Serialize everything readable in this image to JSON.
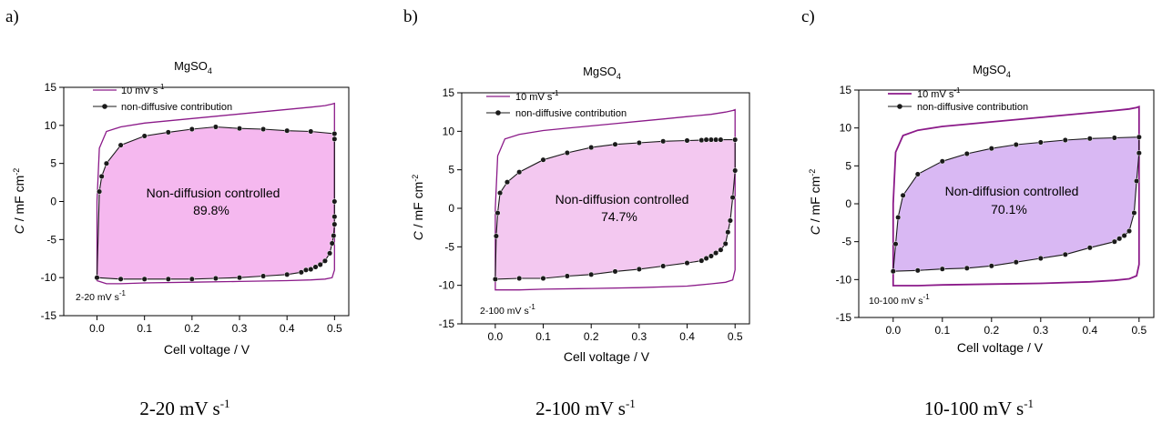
{
  "colors": {
    "cv_line": "#8b1a89",
    "fill_a": "#f5b8ef",
    "fill_b": "#f3c8f0",
    "fill_c": "#d9b8f3",
    "marker": "#1a1a1a"
  },
  "chart_data": [
    {
      "type": "line",
      "panel_label": "a)",
      "title_main": "MgSO",
      "title_sub": "4",
      "xlabel": "Cell voltage / V",
      "ylabel_italic": "C",
      "ylabel_rest": " / mF cm",
      "ylabel_sup": "-2",
      "xlim": [
        -0.07,
        0.53
      ],
      "ylim": [
        -15,
        15
      ],
      "xticks": [
        "0.0",
        "0.1",
        "0.2",
        "0.3",
        "0.4",
        "0.5"
      ],
      "yticks": [
        "-15",
        "-10",
        "-5",
        "0",
        "5",
        "10",
        "15"
      ],
      "legend": {
        "cv_label": "10 mV s",
        "cv_label_sup": "-1",
        "marker_label": "non-diffusive contribution"
      },
      "region_label": "Non-diffusion controlled",
      "region_value": "89.8%",
      "range_label": "2-20 mV s",
      "range_label_sup": "-1",
      "caption": "2-20 mV s",
      "caption_sup": "-1",
      "series": [
        {
          "name": "10 mV s-1",
          "x": [
            0.0,
            0.0,
            0.005,
            0.02,
            0.05,
            0.1,
            0.15,
            0.2,
            0.25,
            0.3,
            0.35,
            0.4,
            0.45,
            0.48,
            0.495,
            0.5,
            0.5,
            0.5,
            0.495,
            0.48,
            0.45,
            0.4,
            0.3,
            0.2,
            0.1,
            0.05,
            0.02,
            0.0
          ],
          "y": [
            -10.4,
            0.0,
            7.0,
            9.2,
            9.8,
            10.3,
            10.6,
            10.9,
            11.2,
            11.5,
            11.8,
            12.1,
            12.4,
            12.6,
            12.8,
            12.9,
            0.0,
            -9.0,
            -10.0,
            -10.2,
            -10.3,
            -10.4,
            -10.5,
            -10.6,
            -10.7,
            -10.8,
            -10.8,
            -10.4
          ]
        },
        {
          "name": "non-diffusive contribution",
          "x": [
            0.0,
            0.005,
            0.01,
            0.02,
            0.05,
            0.1,
            0.15,
            0.2,
            0.25,
            0.3,
            0.35,
            0.4,
            0.45,
            0.5,
            0.5,
            0.5,
            0.5,
            0.5,
            0.498,
            0.495,
            0.49,
            0.48,
            0.47,
            0.46,
            0.45,
            0.44,
            0.43,
            0.4,
            0.35,
            0.3,
            0.25,
            0.2,
            0.15,
            0.1,
            0.05,
            0.0
          ],
          "y": [
            -10.0,
            1.3,
            3.3,
            5.0,
            7.4,
            8.6,
            9.1,
            9.5,
            9.8,
            9.6,
            9.5,
            9.3,
            9.2,
            8.9,
            8.2,
            0.0,
            -2.0,
            -3.0,
            -4.5,
            -5.5,
            -6.8,
            -7.8,
            -8.3,
            -8.6,
            -8.9,
            -9.0,
            -9.3,
            -9.6,
            -9.8,
            -10.0,
            -10.1,
            -10.2,
            -10.2,
            -10.2,
            -10.2,
            -10.0
          ]
        }
      ]
    },
    {
      "type": "line",
      "panel_label": "b)",
      "title_main": "MgSO",
      "title_sub": "4",
      "xlabel": "Cell voltage / V",
      "ylabel_italic": "C",
      "ylabel_rest": " / mF cm",
      "ylabel_sup": "-2",
      "xlim": [
        -0.07,
        0.53
      ],
      "ylim": [
        -15,
        15
      ],
      "xticks": [
        "0.0",
        "0.1",
        "0.2",
        "0.3",
        "0.4",
        "0.5"
      ],
      "yticks": [
        "-15",
        "-10",
        "-5",
        "0",
        "5",
        "10",
        "15"
      ],
      "legend": {
        "cv_label": "10 mV s",
        "cv_label_sup": "-1",
        "marker_label": "non-diffusive contribution"
      },
      "region_label": "Non-diffusion controlled",
      "region_value": "74.7%",
      "range_label": "2-100 mV s",
      "range_label_sup": "-1",
      "caption": "2-100 mV s",
      "caption_sup": "-1",
      "series": [
        {
          "name": "10 mV s-1",
          "x": [
            0.0,
            0.0,
            0.005,
            0.02,
            0.05,
            0.1,
            0.15,
            0.2,
            0.25,
            0.3,
            0.35,
            0.4,
            0.45,
            0.48,
            0.495,
            0.5,
            0.5,
            0.5,
            0.495,
            0.48,
            0.45,
            0.4,
            0.3,
            0.2,
            0.1,
            0.05,
            0.02,
            0.0
          ],
          "y": [
            -10.6,
            0.0,
            6.8,
            9.0,
            9.6,
            10.1,
            10.4,
            10.7,
            11.0,
            11.3,
            11.6,
            11.9,
            12.2,
            12.5,
            12.7,
            12.8,
            0.0,
            -8.0,
            -9.3,
            -9.6,
            -9.8,
            -10.1,
            -10.3,
            -10.4,
            -10.5,
            -10.6,
            -10.6,
            -10.6
          ]
        },
        {
          "name": "non-diffusive contribution",
          "x": [
            0.0,
            0.002,
            0.005,
            0.01,
            0.025,
            0.05,
            0.1,
            0.15,
            0.2,
            0.25,
            0.3,
            0.35,
            0.4,
            0.43,
            0.44,
            0.45,
            0.46,
            0.47,
            0.5,
            0.5,
            0.495,
            0.49,
            0.485,
            0.48,
            0.47,
            0.46,
            0.45,
            0.44,
            0.43,
            0.4,
            0.35,
            0.3,
            0.25,
            0.2,
            0.15,
            0.1,
            0.05,
            0.0
          ],
          "y": [
            -9.2,
            -3.6,
            -0.6,
            2.0,
            3.4,
            4.7,
            6.3,
            7.2,
            7.9,
            8.3,
            8.5,
            8.7,
            8.8,
            8.85,
            8.9,
            8.9,
            8.9,
            8.9,
            8.9,
            4.9,
            1.4,
            -1.6,
            -3.1,
            -4.6,
            -5.4,
            -5.8,
            -6.2,
            -6.5,
            -6.8,
            -7.1,
            -7.5,
            -7.9,
            -8.2,
            -8.6,
            -8.8,
            -9.1,
            -9.1,
            -9.2
          ]
        }
      ]
    },
    {
      "type": "line",
      "panel_label": "c)",
      "title_main": "MgSO",
      "title_sub": "4",
      "xlabel": "Cell voltage / V",
      "ylabel_italic": "C",
      "ylabel_rest": " / mF cm",
      "ylabel_sup": "-2",
      "xlim": [
        -0.07,
        0.53
      ],
      "ylim": [
        -15,
        15
      ],
      "xticks": [
        "0.0",
        "0.1",
        "0.2",
        "0.3",
        "0.4",
        "0.5"
      ],
      "yticks": [
        "-15",
        "-10",
        "-5",
        "0",
        "5",
        "10",
        "15"
      ],
      "legend": {
        "cv_label": "10 mV s",
        "cv_label_sup": "-1",
        "marker_label": "non-diffusive contribution"
      },
      "region_label": "Non-diffusion controlled",
      "region_value": "70.1%",
      "range_label": "10-100 mV s",
      "range_label_sup": "-1",
      "caption": "10-100 mV s",
      "caption_sup": "-1",
      "series": [
        {
          "name": "10 mV s-1",
          "x": [
            0.0,
            0.0,
            0.005,
            0.02,
            0.05,
            0.1,
            0.15,
            0.2,
            0.25,
            0.3,
            0.35,
            0.4,
            0.45,
            0.48,
            0.495,
            0.5,
            0.5,
            0.5,
            0.495,
            0.48,
            0.45,
            0.4,
            0.3,
            0.2,
            0.1,
            0.05,
            0.02,
            0.0
          ],
          "y": [
            -10.8,
            0.0,
            6.8,
            9.0,
            9.7,
            10.2,
            10.5,
            10.8,
            11.1,
            11.4,
            11.7,
            12.0,
            12.3,
            12.5,
            12.7,
            12.8,
            0.0,
            -8.0,
            -9.5,
            -9.9,
            -10.1,
            -10.3,
            -10.5,
            -10.6,
            -10.7,
            -10.8,
            -10.8,
            -10.8
          ]
        },
        {
          "name": "non-diffusive contribution",
          "x": [
            0.0,
            0.005,
            0.01,
            0.02,
            0.05,
            0.1,
            0.15,
            0.2,
            0.25,
            0.3,
            0.35,
            0.4,
            0.45,
            0.5,
            0.5,
            0.495,
            0.49,
            0.48,
            0.47,
            0.46,
            0.45,
            0.4,
            0.35,
            0.3,
            0.25,
            0.2,
            0.15,
            0.1,
            0.05,
            0.0
          ],
          "y": [
            -8.9,
            -5.3,
            -1.8,
            1.1,
            3.9,
            5.6,
            6.6,
            7.3,
            7.8,
            8.1,
            8.4,
            8.6,
            8.7,
            8.8,
            6.7,
            3.0,
            -1.2,
            -3.6,
            -4.2,
            -4.6,
            -5.0,
            -5.8,
            -6.7,
            -7.2,
            -7.7,
            -8.2,
            -8.5,
            -8.6,
            -8.8,
            -8.9
          ]
        }
      ]
    }
  ]
}
